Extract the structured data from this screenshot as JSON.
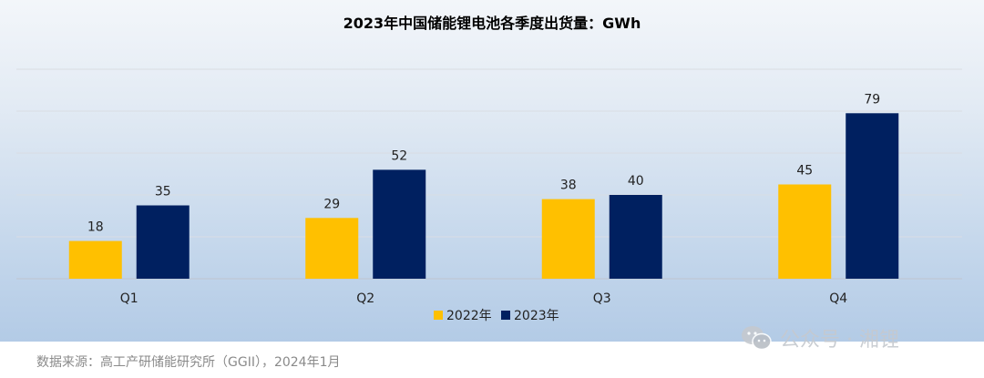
{
  "chart_data": {
    "type": "bar",
    "title": "2023年中国储能锂电池各季度出货量：GWh",
    "categories": [
      "Q1",
      "Q2",
      "Q3",
      "Q4"
    ],
    "series": [
      {
        "name": "2022年",
        "values": [
          18,
          29,
          38,
          45
        ],
        "color": "#ffc000"
      },
      {
        "name": "2023年",
        "values": [
          35,
          52,
          40,
          79
        ],
        "color": "#002060"
      }
    ],
    "ylim": [
      0,
      100
    ],
    "grid": true,
    "legend_position": "bottom-center",
    "data_labels": true
  },
  "source_note": "数据来源：高工产研储能研究所（GGII），2024年1月",
  "watermark": {
    "text": "公众号 · 湘锂",
    "icon": "wechat-icon"
  }
}
